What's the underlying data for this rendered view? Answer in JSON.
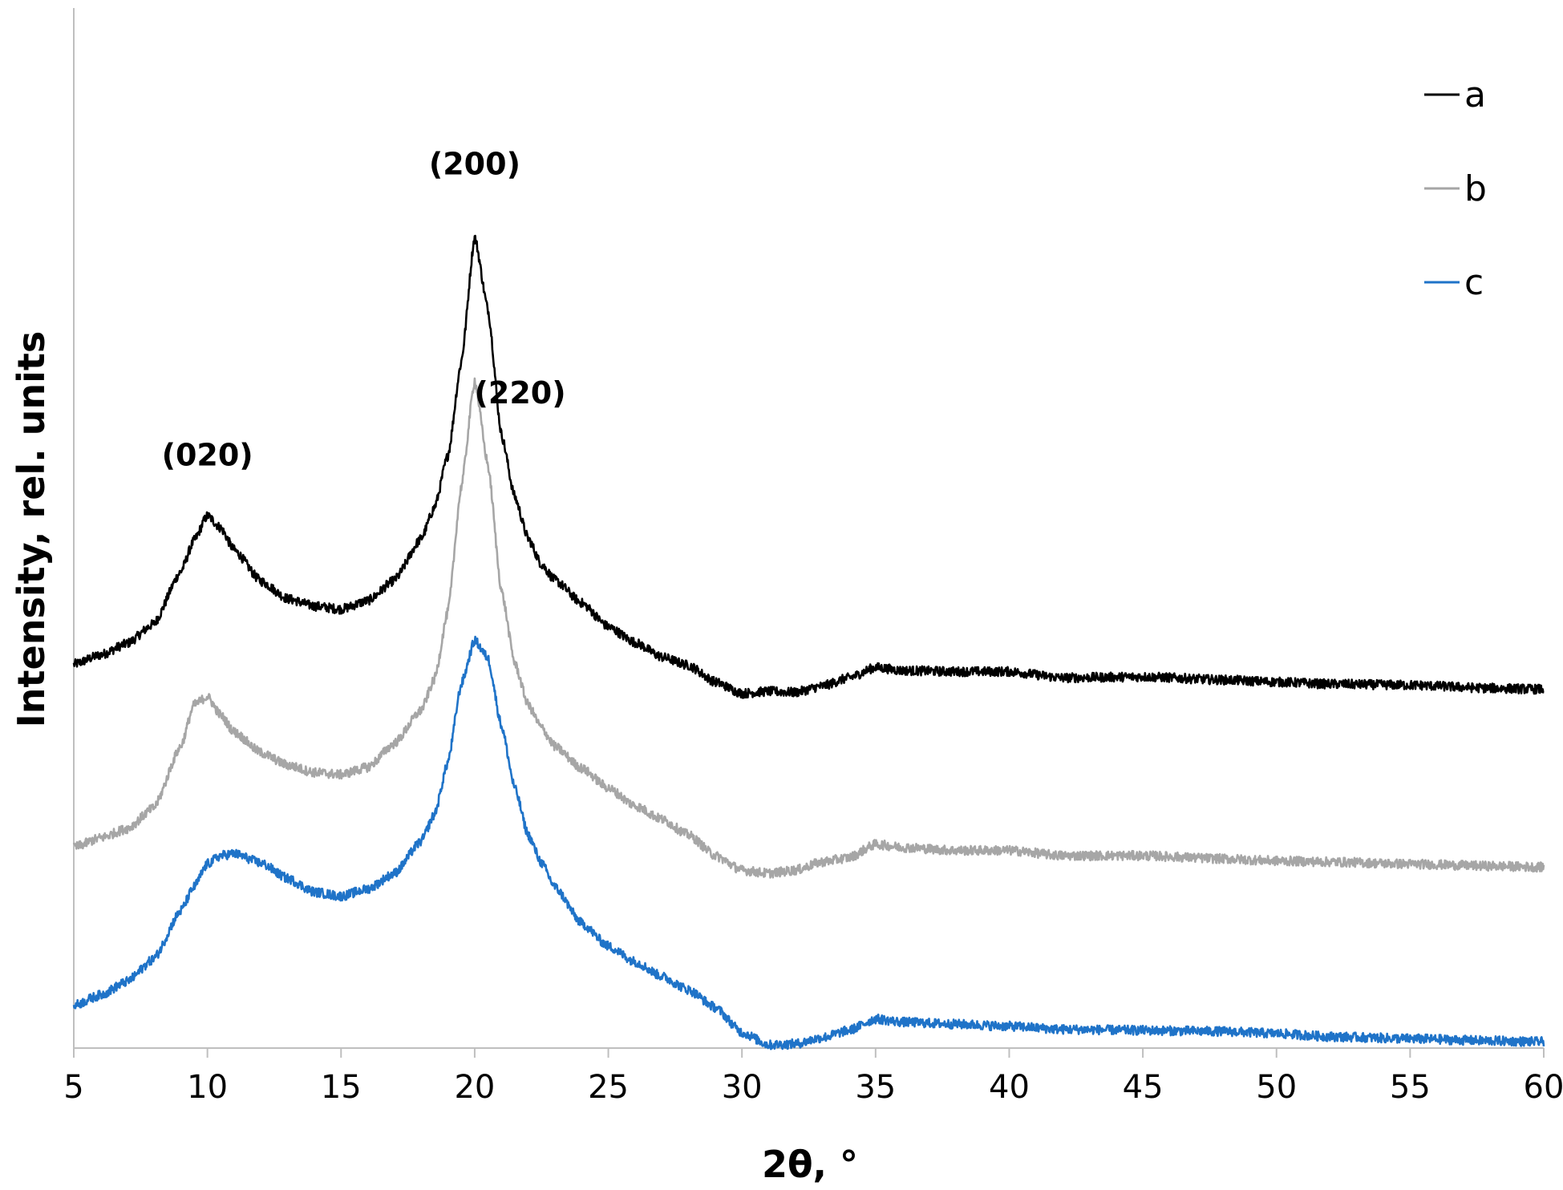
{
  "chart_data": {
    "type": "line",
    "title": "",
    "xlabel": "2θ, °",
    "ylabel": "Intensity, rel. units",
    "xlim": [
      5,
      60
    ],
    "ylim": [
      0,
      100
    ],
    "x_ticks": [
      "5",
      "10",
      "15",
      "20",
      "25",
      "30",
      "35",
      "40",
      "45",
      "50",
      "55",
      "60"
    ],
    "y_ticks_shown": false,
    "grid": false,
    "legend_position": "top-right",
    "annotations": [
      {
        "text": "(020)",
        "x": 10.0,
        "y": 56
      },
      {
        "text": "(200)",
        "x": 20.0,
        "y": 84
      },
      {
        "text": "(220)",
        "x": 21.7,
        "y": 62
      }
    ],
    "series": [
      {
        "name": "a",
        "color": "#000000",
        "x": [
          5,
          6,
          7,
          8,
          9,
          9.5,
          10,
          10.5,
          11,
          12,
          13,
          14,
          15,
          16,
          17,
          18,
          18.5,
          19,
          19.5,
          20,
          20.5,
          21,
          21.5,
          22,
          22.5,
          23,
          24,
          25,
          26,
          27,
          28,
          29,
          30,
          31,
          32,
          33,
          34,
          35,
          36,
          38,
          40,
          42,
          45,
          48,
          50,
          52,
          55,
          58,
          60
        ],
        "y": [
          36.9,
          37.8,
          38.9,
          40.8,
          45.8,
          48.8,
          51.2,
          50.0,
          47.9,
          44.9,
          43.2,
          42.5,
          42.2,
          43.0,
          45.0,
          49.0,
          52.0,
          57.0,
          66.0,
          78.0,
          71.0,
          59.0,
          53.0,
          49.0,
          46.5,
          45.0,
          42.8,
          40.5,
          39.0,
          37.6,
          36.8,
          35.2,
          34.1,
          34.3,
          34.2,
          34.8,
          35.6,
          36.6,
          36.3,
          36.2,
          36.2,
          35.6,
          35.7,
          35.4,
          35.2,
          35.0,
          34.9,
          34.6,
          34.5
        ]
      },
      {
        "name": "b",
        "color": "#a6a6a6",
        "x": [
          5,
          6,
          7,
          8,
          9,
          9.5,
          10,
          10.5,
          11,
          12,
          13,
          14,
          15,
          16,
          17,
          18,
          18.5,
          19,
          19.5,
          20,
          20.5,
          21,
          21.5,
          22,
          22.5,
          23,
          24,
          25,
          26,
          27,
          28,
          29,
          30,
          31,
          32,
          33,
          34,
          35,
          36,
          38,
          40,
          42,
          45,
          48,
          50,
          52,
          55,
          58,
          60
        ],
        "y": [
          19.3,
          20.2,
          21.1,
          23.1,
          29.0,
          33.0,
          33.8,
          32.0,
          30.4,
          28.4,
          27.2,
          26.5,
          26.3,
          27.0,
          29.3,
          32.5,
          35.5,
          42.0,
          54.0,
          64.2,
          56.0,
          44.0,
          37.0,
          33.0,
          30.8,
          29.0,
          26.9,
          25.0,
          23.3,
          22.0,
          20.5,
          18.5,
          17.1,
          16.8,
          17.1,
          17.9,
          18.3,
          19.6,
          19.3,
          19.0,
          19.0,
          18.5,
          18.5,
          18.2,
          18.0,
          17.9,
          17.7,
          17.5,
          17.4
        ]
      },
      {
        "name": "c",
        "color": "#1f73c8",
        "x": [
          5,
          6,
          7,
          8,
          9,
          9.5,
          10,
          10.5,
          11,
          12,
          13,
          14,
          15,
          16,
          17,
          18,
          18.5,
          19,
          19.5,
          20,
          20.5,
          21,
          21.5,
          22,
          22.5,
          23,
          24,
          25,
          26,
          27,
          28,
          29,
          30,
          31,
          32,
          33,
          34,
          35,
          36,
          38,
          40,
          42,
          45,
          48,
          50,
          52,
          55,
          58,
          60
        ],
        "y": [
          4.1,
          5.1,
          6.4,
          8.6,
          13.2,
          15.5,
          17.7,
          18.5,
          18.7,
          17.8,
          16.3,
          15.0,
          14.6,
          15.3,
          16.8,
          19.9,
          22.5,
          27.5,
          35.0,
          39.2,
          37.5,
          31.0,
          25.0,
          20.5,
          17.8,
          15.5,
          12.0,
          9.8,
          8.3,
          6.9,
          5.6,
          3.9,
          1.5,
          0.3,
          0.4,
          1.0,
          1.7,
          2.8,
          2.5,
          2.3,
          2.1,
          1.8,
          1.7,
          1.6,
          1.4,
          1.1,
          0.9,
          0.7,
          0.6
        ]
      }
    ]
  }
}
